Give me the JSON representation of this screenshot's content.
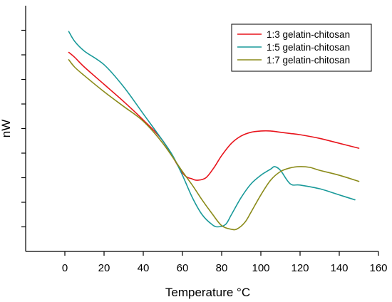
{
  "chart_data": {
    "type": "line",
    "xlabel": "Temperature °C",
    "ylabel": "nW",
    "xlim": [
      -20,
      160
    ],
    "ylim": [
      0,
      10
    ],
    "x_ticks": [
      0,
      20,
      40,
      60,
      80,
      100,
      120,
      140,
      160
    ],
    "y_ticks": [
      1,
      2,
      3,
      4,
      5,
      6,
      7,
      8,
      9
    ],
    "y_tick_labels_shown": false,
    "grid": false,
    "legend_position": "top-right",
    "series": [
      {
        "name": "1:3 gelatin-chitosan",
        "color": "#e8141c",
        "x": [
          2,
          5,
          10,
          20,
          30,
          40,
          50,
          60,
          65,
          68,
          72,
          76,
          80,
          85,
          90,
          95,
          100,
          105,
          110,
          115,
          120,
          130,
          140,
          150
        ],
        "y": [
          8.1,
          7.9,
          7.5,
          6.8,
          6.1,
          5.35,
          4.5,
          3.2,
          2.95,
          2.9,
          3.0,
          3.4,
          3.9,
          4.4,
          4.7,
          4.85,
          4.9,
          4.9,
          4.85,
          4.8,
          4.75,
          4.6,
          4.4,
          4.2
        ]
      },
      {
        "name": "1:5 gelatin-chitosan",
        "color": "#1a9a9a",
        "x": [
          2,
          5,
          10,
          20,
          30,
          40,
          50,
          55,
          60,
          65,
          70,
          75,
          78,
          82,
          85,
          90,
          95,
          100,
          105,
          107,
          110,
          115,
          120,
          130,
          140,
          148
        ],
        "y": [
          8.95,
          8.55,
          8.15,
          7.6,
          6.7,
          5.6,
          4.5,
          3.9,
          3.1,
          2.2,
          1.5,
          1.1,
          1.0,
          1.1,
          1.5,
          2.2,
          2.75,
          3.1,
          3.35,
          3.45,
          3.3,
          2.75,
          2.7,
          2.55,
          2.3,
          2.1
        ]
      },
      {
        "name": "1:7 gelatin-chitosan",
        "color": "#8b8b1a",
        "x": [
          2,
          5,
          10,
          20,
          30,
          40,
          50,
          60,
          65,
          70,
          75,
          80,
          85,
          88,
          92,
          95,
          100,
          105,
          110,
          115,
          120,
          125,
          130,
          140,
          150
        ],
        "y": [
          7.8,
          7.5,
          7.15,
          6.5,
          5.9,
          5.3,
          4.4,
          3.25,
          2.7,
          2.1,
          1.55,
          1.05,
          0.9,
          0.92,
          1.2,
          1.6,
          2.3,
          2.9,
          3.25,
          3.4,
          3.45,
          3.42,
          3.3,
          3.1,
          2.85
        ]
      }
    ]
  }
}
